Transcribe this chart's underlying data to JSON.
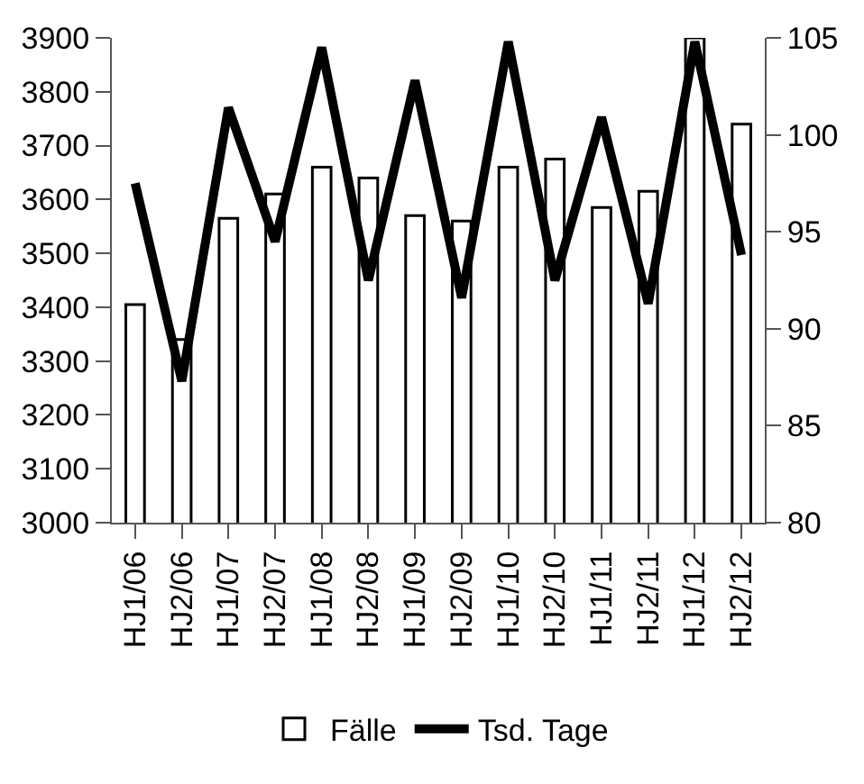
{
  "chart_data": {
    "type": "bar",
    "categories": [
      "HJ1/06",
      "HJ2/06",
      "HJ1/07",
      "HJ2/07",
      "HJ1/08",
      "HJ2/08",
      "HJ1/09",
      "HJ2/09",
      "HJ1/10",
      "HJ2/10",
      "HJ1/11",
      "HJ2/11",
      "HJ1/12",
      "HJ2/12"
    ],
    "series": [
      {
        "name": "Fälle",
        "color": "#ffffff",
        "values": [
          3405,
          3340,
          3565,
          3610,
          3660,
          3640,
          3570,
          3560,
          3660,
          3675,
          3585,
          3615,
          3900,
          3740
        ]
      },
      {
        "name": "Tsd. Tage",
        "type": "line",
        "axis": "y2",
        "color": "#000000",
        "values": [
          97.5,
          87.3,
          101.4,
          94.5,
          104.5,
          92.5,
          102.8,
          91.6,
          104.8,
          92.5,
          100.9,
          91.3,
          104.8,
          93.8
        ]
      }
    ],
    "ylim": [
      3000,
      3900
    ],
    "yticks": [
      3000,
      3100,
      3200,
      3300,
      3400,
      3500,
      3600,
      3700,
      3800,
      3900
    ],
    "y2lim": [
      80,
      105
    ],
    "y2ticks": [
      80,
      85,
      90,
      95,
      100,
      105
    ],
    "legend": "bottom",
    "marker": "none",
    "line_style": "solid"
  }
}
